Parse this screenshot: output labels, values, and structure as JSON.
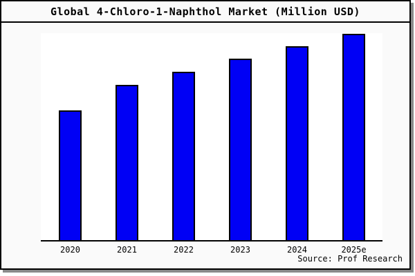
{
  "chart_data": {
    "type": "bar",
    "title": "Global 4-Chloro-1-Naphthol Market (Million USD)",
    "categories": [
      "2020",
      "2021",
      "2022",
      "2023",
      "2024",
      "2025e"
    ],
    "values": [
      62.9,
      75.3,
      81.6,
      88.0,
      94.0,
      100.0
    ],
    "values_note": "y-axis has no tick labels; values are relative bar heights normalized to 2025e = 100",
    "unit": "Million USD",
    "xlabel": "",
    "ylabel": "",
    "ylim": [
      0,
      100
    ],
    "grid": false,
    "legend_position": "none",
    "source_note": "Source: Prof Research",
    "colors": {
      "bar_fill": "#0000F5",
      "bar_border": "#000000",
      "page_background": "#FAFAFA",
      "plot_background": "#FFFFFF",
      "axis_line": "#000000",
      "frame_shadow": "#8A8A8A"
    }
  }
}
